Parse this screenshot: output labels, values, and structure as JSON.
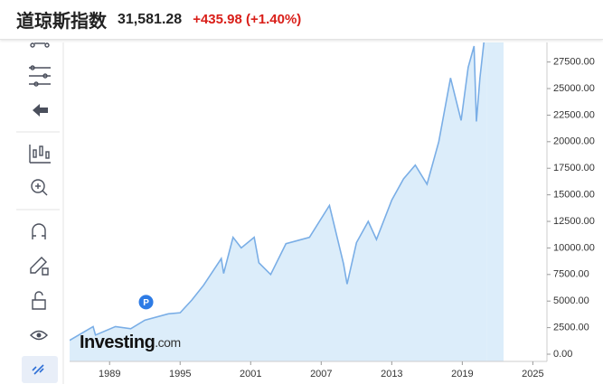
{
  "header": {
    "title": "道琼斯指数",
    "price": "31,581.28",
    "change": "+435.98 (+1.40%)"
  },
  "chart_data": {
    "type": "area",
    "watermark": "Investing",
    "watermark_suffix": ".com",
    "marker_label": "P",
    "marker_x": 1992.1,
    "marker_y": 4900,
    "color": "#7aaee6",
    "fill": "#dcedfa",
    "x": [
      1985.6,
      1987.6,
      1987.8,
      1989.5,
      1990.8,
      1992.0,
      1994.0,
      1995.0,
      1996.0,
      1997.0,
      1998.5,
      1998.7,
      1999.5,
      2000.2,
      2001.3,
      2001.7,
      2002.7,
      2004.0,
      2005.0,
      2006.0,
      2007.7,
      2008.9,
      2009.2,
      2010.0,
      2011.0,
      2011.7,
      2013.0,
      2014.0,
      2015.0,
      2016.0,
      2017.0,
      2018.0,
      2018.9,
      2019.5,
      2020.0,
      2020.2,
      2020.5,
      2020.9,
      2021.1
    ],
    "values": [
      1300,
      2600,
      1800,
      2600,
      2400,
      3200,
      3800,
      3900,
      5100,
      6500,
      9000,
      7600,
      11000,
      10000,
      11000,
      8600,
      7500,
      10400,
      10700,
      11000,
      14000,
      8500,
      6600,
      10500,
      12500,
      10800,
      14500,
      16500,
      17800,
      16000,
      20000,
      26000,
      22000,
      27000,
      29000,
      21900,
      26000,
      30000,
      31581.28
    ],
    "xlim": [
      1985.6,
      2026.2
    ],
    "xticks": [
      1989,
      1995,
      2001,
      2007,
      2013,
      2019,
      2025
    ],
    "ylim": [
      -680,
      29340
    ],
    "yticks": [
      {
        "value": 0,
        "label": "0.00"
      },
      {
        "value": 2500,
        "label": "2500.00"
      },
      {
        "value": 5000,
        "label": "5000.00"
      },
      {
        "value": 7500,
        "label": "7500.00"
      },
      {
        "value": 10000,
        "label": "10000.00"
      },
      {
        "value": 12500,
        "label": "12500.00"
      },
      {
        "value": 15000,
        "label": "15000.00"
      },
      {
        "value": 17500,
        "label": "17500.00"
      },
      {
        "value": 20000,
        "label": "20000.00"
      },
      {
        "value": 22500,
        "label": "22500.00"
      },
      {
        "value": 25000,
        "label": "25000.00"
      },
      {
        "value": 27500,
        "label": "27500.00"
      }
    ]
  }
}
